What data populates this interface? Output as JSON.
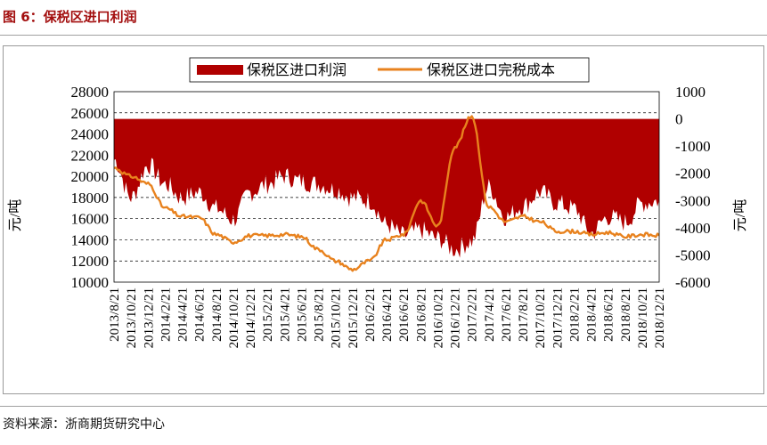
{
  "figure": {
    "title": "图 6：保税区进口利润",
    "source": "资料来源：浙商期货研究中心"
  },
  "colors": {
    "profit_fill": "#b00000",
    "cost_line": "#e8821e",
    "title": "#a30f0f",
    "grid": "#000000"
  },
  "chart_data": {
    "type": "area",
    "x_tick_labels": [
      "2013/8/21",
      "2013/10/21",
      "2013/12/21",
      "2014/2/21",
      "2014/4/21",
      "2014/6/21",
      "2014/8/21",
      "2014/10/21",
      "2014/12/21",
      "2015/2/21",
      "2015/4/21",
      "2015/6/21",
      "2015/8/21",
      "2015/10/21",
      "2015/12/21",
      "2016/2/21",
      "2016/4/21",
      "2016/6/21",
      "2016/8/21",
      "2016/10/21",
      "2016/12/21",
      "2017/2/21",
      "2017/4/21",
      "2017/6/21",
      "2017/8/21",
      "2017/10/21",
      "2017/12/21",
      "2018/2/21",
      "2018/4/21",
      "2018/6/21",
      "2018/8/21",
      "2018/10/21",
      "2018/12/21"
    ],
    "x_dates": [
      "2013/8/21",
      "2013/10/21",
      "2013/12/21",
      "2014/2/21",
      "2014/4/21",
      "2014/6/21",
      "2014/8/21",
      "2014/10/21",
      "2014/12/21",
      "2015/2/21",
      "2015/4/21",
      "2015/6/21",
      "2015/8/21",
      "2015/10/21",
      "2015/12/21",
      "2016/2/21",
      "2016/4/21",
      "2016/6/21",
      "2016/8/21",
      "2016/10/21",
      "2016/12/21",
      "2017/2/21",
      "2017/4/21",
      "2017/6/21",
      "2017/8/21",
      "2017/10/21",
      "2017/12/21",
      "2018/2/21",
      "2018/4/21",
      "2018/6/21",
      "2018/8/21",
      "2018/10/21",
      "2018/12/21"
    ],
    "y_left": {
      "label": "元/吨",
      "min": 10000,
      "max": 28000,
      "ticks": [
        10000,
        12000,
        14000,
        16000,
        18000,
        20000,
        22000,
        24000,
        26000,
        28000
      ]
    },
    "y_right": {
      "label": "元/吨",
      "min": -6000,
      "max": 1000,
      "ticks": [
        -6000,
        -5000,
        -4000,
        -3000,
        -2000,
        -1000,
        0,
        1000
      ]
    },
    "grid": "horizontal dashed",
    "legend_position": "top-center",
    "series": [
      {
        "name": "保税区进口利润",
        "kind": "area",
        "axis": "right",
        "values": [
          -1500,
          -2900,
          -1700,
          -2400,
          -2900,
          -2700,
          -3300,
          -3700,
          -2700,
          -2400,
          -2100,
          -2300,
          -2400,
          -2600,
          -2900,
          -3000,
          -3900,
          -4300,
          -4100,
          -4400,
          -4800,
          -4500,
          -2500,
          -3600,
          -3200,
          -2700,
          -3100,
          -3300,
          -4200,
          -3600,
          -3800,
          -3100,
          -3000
        ]
      },
      {
        "name": "保税区进口完税成本",
        "kind": "line",
        "axis": "left",
        "values": [
          20800,
          20000,
          19300,
          17000,
          16200,
          16100,
          14500,
          13800,
          14400,
          14400,
          14500,
          14300,
          13100,
          12000,
          11200,
          12000,
          14000,
          14500,
          17700,
          15300,
          22800,
          25700,
          17100,
          15700,
          16200,
          15700,
          14800,
          14800,
          14500,
          14700,
          14300,
          14500,
          14400
        ]
      }
    ]
  }
}
